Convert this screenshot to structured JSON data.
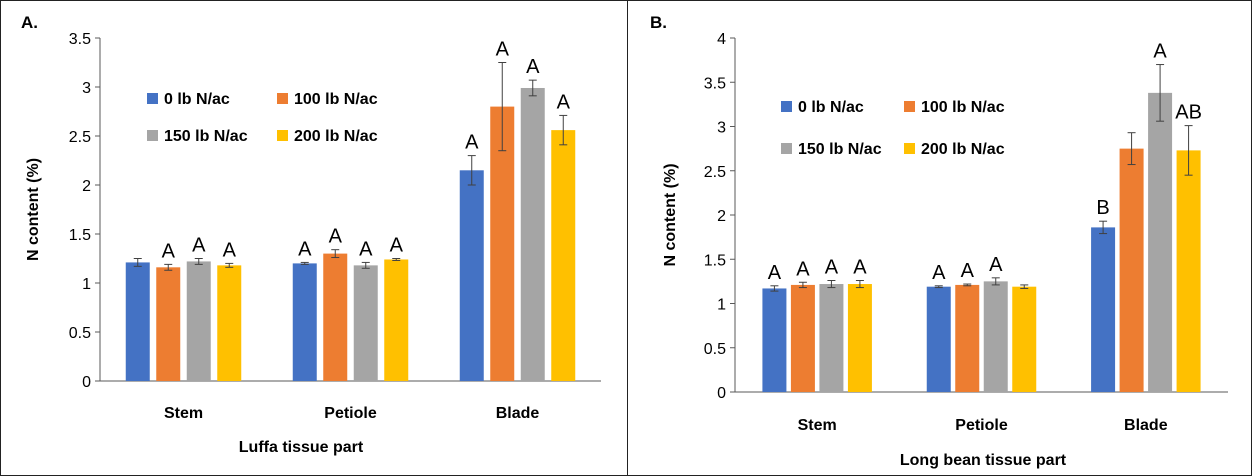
{
  "figure": {
    "panels": [
      {
        "label": "A.",
        "chart_data": {
          "type": "bar",
          "title": "",
          "xlabel": "Luffa tissue part",
          "ylabel": "N content (%)",
          "ylim": [
            0,
            3.5
          ],
          "yticks": [
            "0",
            "0.5",
            "1",
            "1.5",
            "2",
            "2.5",
            "3",
            "3.5"
          ],
          "categories": [
            "Stem",
            "Petiole",
            "Blade"
          ],
          "grid": false,
          "legend": "top-left",
          "series": [
            {
              "name": "0 lb N/ac",
              "color": "#4472C4",
              "values": [
                1.21,
                1.2,
                2.15
              ],
              "errors": [
                0.04,
                0.01,
                0.15
              ],
              "letters": [
                "",
                "A",
                "A"
              ]
            },
            {
              "name": "100 lb N/ac",
              "color": "#ED7D31",
              "values": [
                1.16,
                1.3,
                2.8
              ],
              "errors": [
                0.03,
                0.04,
                0.45
              ],
              "letters": [
                "A",
                "A",
                "A"
              ]
            },
            {
              "name": "150 lb N/ac",
              "color": "#A5A5A5",
              "values": [
                1.22,
                1.18,
                2.99
              ],
              "errors": [
                0.03,
                0.03,
                0.08
              ],
              "letters": [
                "A",
                "A",
                "A"
              ]
            },
            {
              "name": "200 lb N/ac",
              "color": "#FFC000",
              "values": [
                1.18,
                1.24,
                2.56
              ],
              "errors": [
                0.02,
                0.01,
                0.15
              ],
              "letters": [
                "A",
                "A",
                "A"
              ]
            }
          ]
        }
      },
      {
        "label": "B.",
        "chart_data": {
          "type": "bar",
          "title": "",
          "xlabel": "Long bean tissue part",
          "ylabel": "N content (%)",
          "ylim": [
            0,
            4
          ],
          "yticks": [
            "0",
            "0.5",
            "1",
            "1.5",
            "2",
            "2.5",
            "3",
            "3.5",
            "4"
          ],
          "categories": [
            "Stem",
            "Petiole",
            "Blade"
          ],
          "grid": false,
          "legend": "top-left",
          "series": [
            {
              "name": "0 lb N/ac",
              "color": "#4472C4",
              "values": [
                1.17,
                1.19,
                1.86
              ],
              "errors": [
                0.03,
                0.01,
                0.07
              ],
              "letters": [
                "A",
                "A",
                "B"
              ]
            },
            {
              "name": "100 lb N/ac",
              "color": "#ED7D31",
              "values": [
                1.21,
                1.21,
                2.75
              ],
              "errors": [
                0.03,
                0.01,
                0.18
              ],
              "letters": [
                "A",
                "A",
                ""
              ]
            },
            {
              "name": "150 lb N/ac",
              "color": "#A5A5A5",
              "values": [
                1.22,
                1.25,
                3.38
              ],
              "errors": [
                0.04,
                0.04,
                0.32
              ],
              "letters": [
                "A",
                "A",
                "A"
              ]
            },
            {
              "name": "200 lb N/ac",
              "color": "#FFC000",
              "values": [
                1.22,
                1.19,
                2.73
              ],
              "errors": [
                0.04,
                0.02,
                0.28
              ],
              "letters": [
                "A",
                "",
                "AB"
              ]
            }
          ]
        }
      }
    ]
  }
}
